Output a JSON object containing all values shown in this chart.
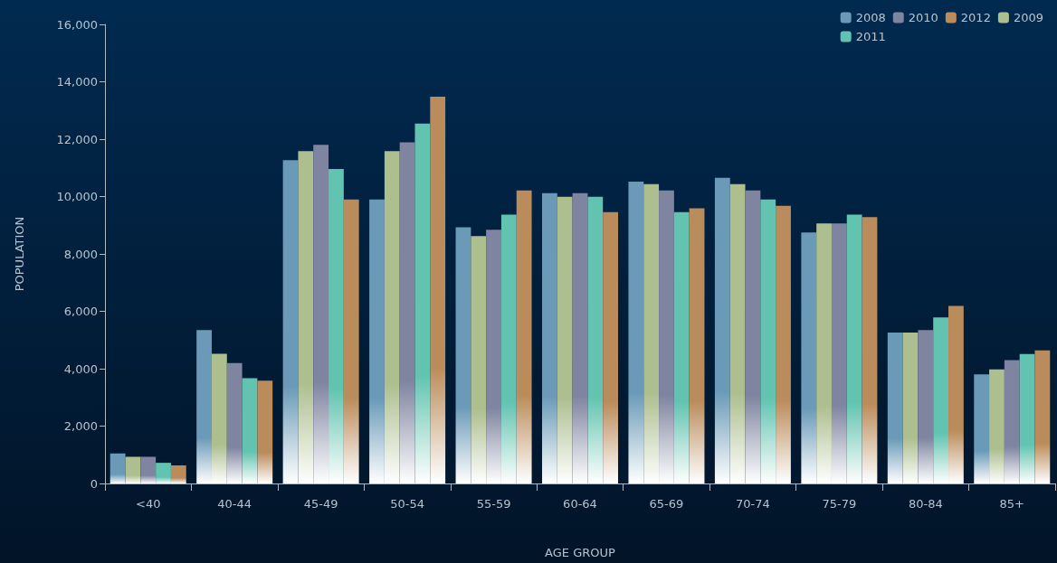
{
  "chart_data": {
    "type": "bar",
    "xlabel": "AGE GROUP",
    "ylabel": "POPULATION",
    "categories": [
      "<40",
      "40-44",
      "45-49",
      "50-54",
      "55-59",
      "60-64",
      "65-69",
      "70-74",
      "75-79",
      "80-84",
      "85+"
    ],
    "series": [
      {
        "name": "2008",
        "color": "#6a9ab8",
        "values": [
          1050,
          5350,
          11270,
          9900,
          8930,
          10120,
          10520,
          10650,
          8750,
          5260,
          3800
        ]
      },
      {
        "name": "2009",
        "color": "#adbf8f",
        "values": [
          930,
          4520,
          11580,
          11580,
          8620,
          9990,
          10430,
          10430,
          9060,
          5260,
          3980
        ]
      },
      {
        "name": "2010",
        "color": "#7f84a0",
        "values": [
          930,
          4200,
          11800,
          11890,
          8840,
          10120,
          10210,
          10210,
          9060,
          5350,
          4300
        ]
      },
      {
        "name": "2011",
        "color": "#62c4b0",
        "values": [
          720,
          3670,
          10960,
          12540,
          9370,
          9990,
          9460,
          9900,
          9370,
          5790,
          4510
        ]
      },
      {
        "name": "2012",
        "color": "#bb8c5b",
        "values": [
          630,
          3580,
          9900,
          13480,
          10210,
          9460,
          9590,
          9680,
          9280,
          6190,
          4640
        ]
      }
    ],
    "ylim": [
      0,
      16000
    ],
    "yticks": [
      0,
      {
        "value": 2000,
        "label": "2,000"
      },
      {
        "value": 4000,
        "label": "4,000"
      },
      {
        "value": 6000,
        "label": "6,000"
      },
      {
        "value": 8000,
        "label": "8,000"
      },
      {
        "value": 10000,
        "label": "10,000"
      },
      {
        "value": 12000,
        "label": "12,000"
      },
      {
        "value": 14000,
        "label": "14,000"
      },
      {
        "value": 16000,
        "label": "16,000"
      }
    ],
    "grid": false,
    "legend": "top right"
  }
}
